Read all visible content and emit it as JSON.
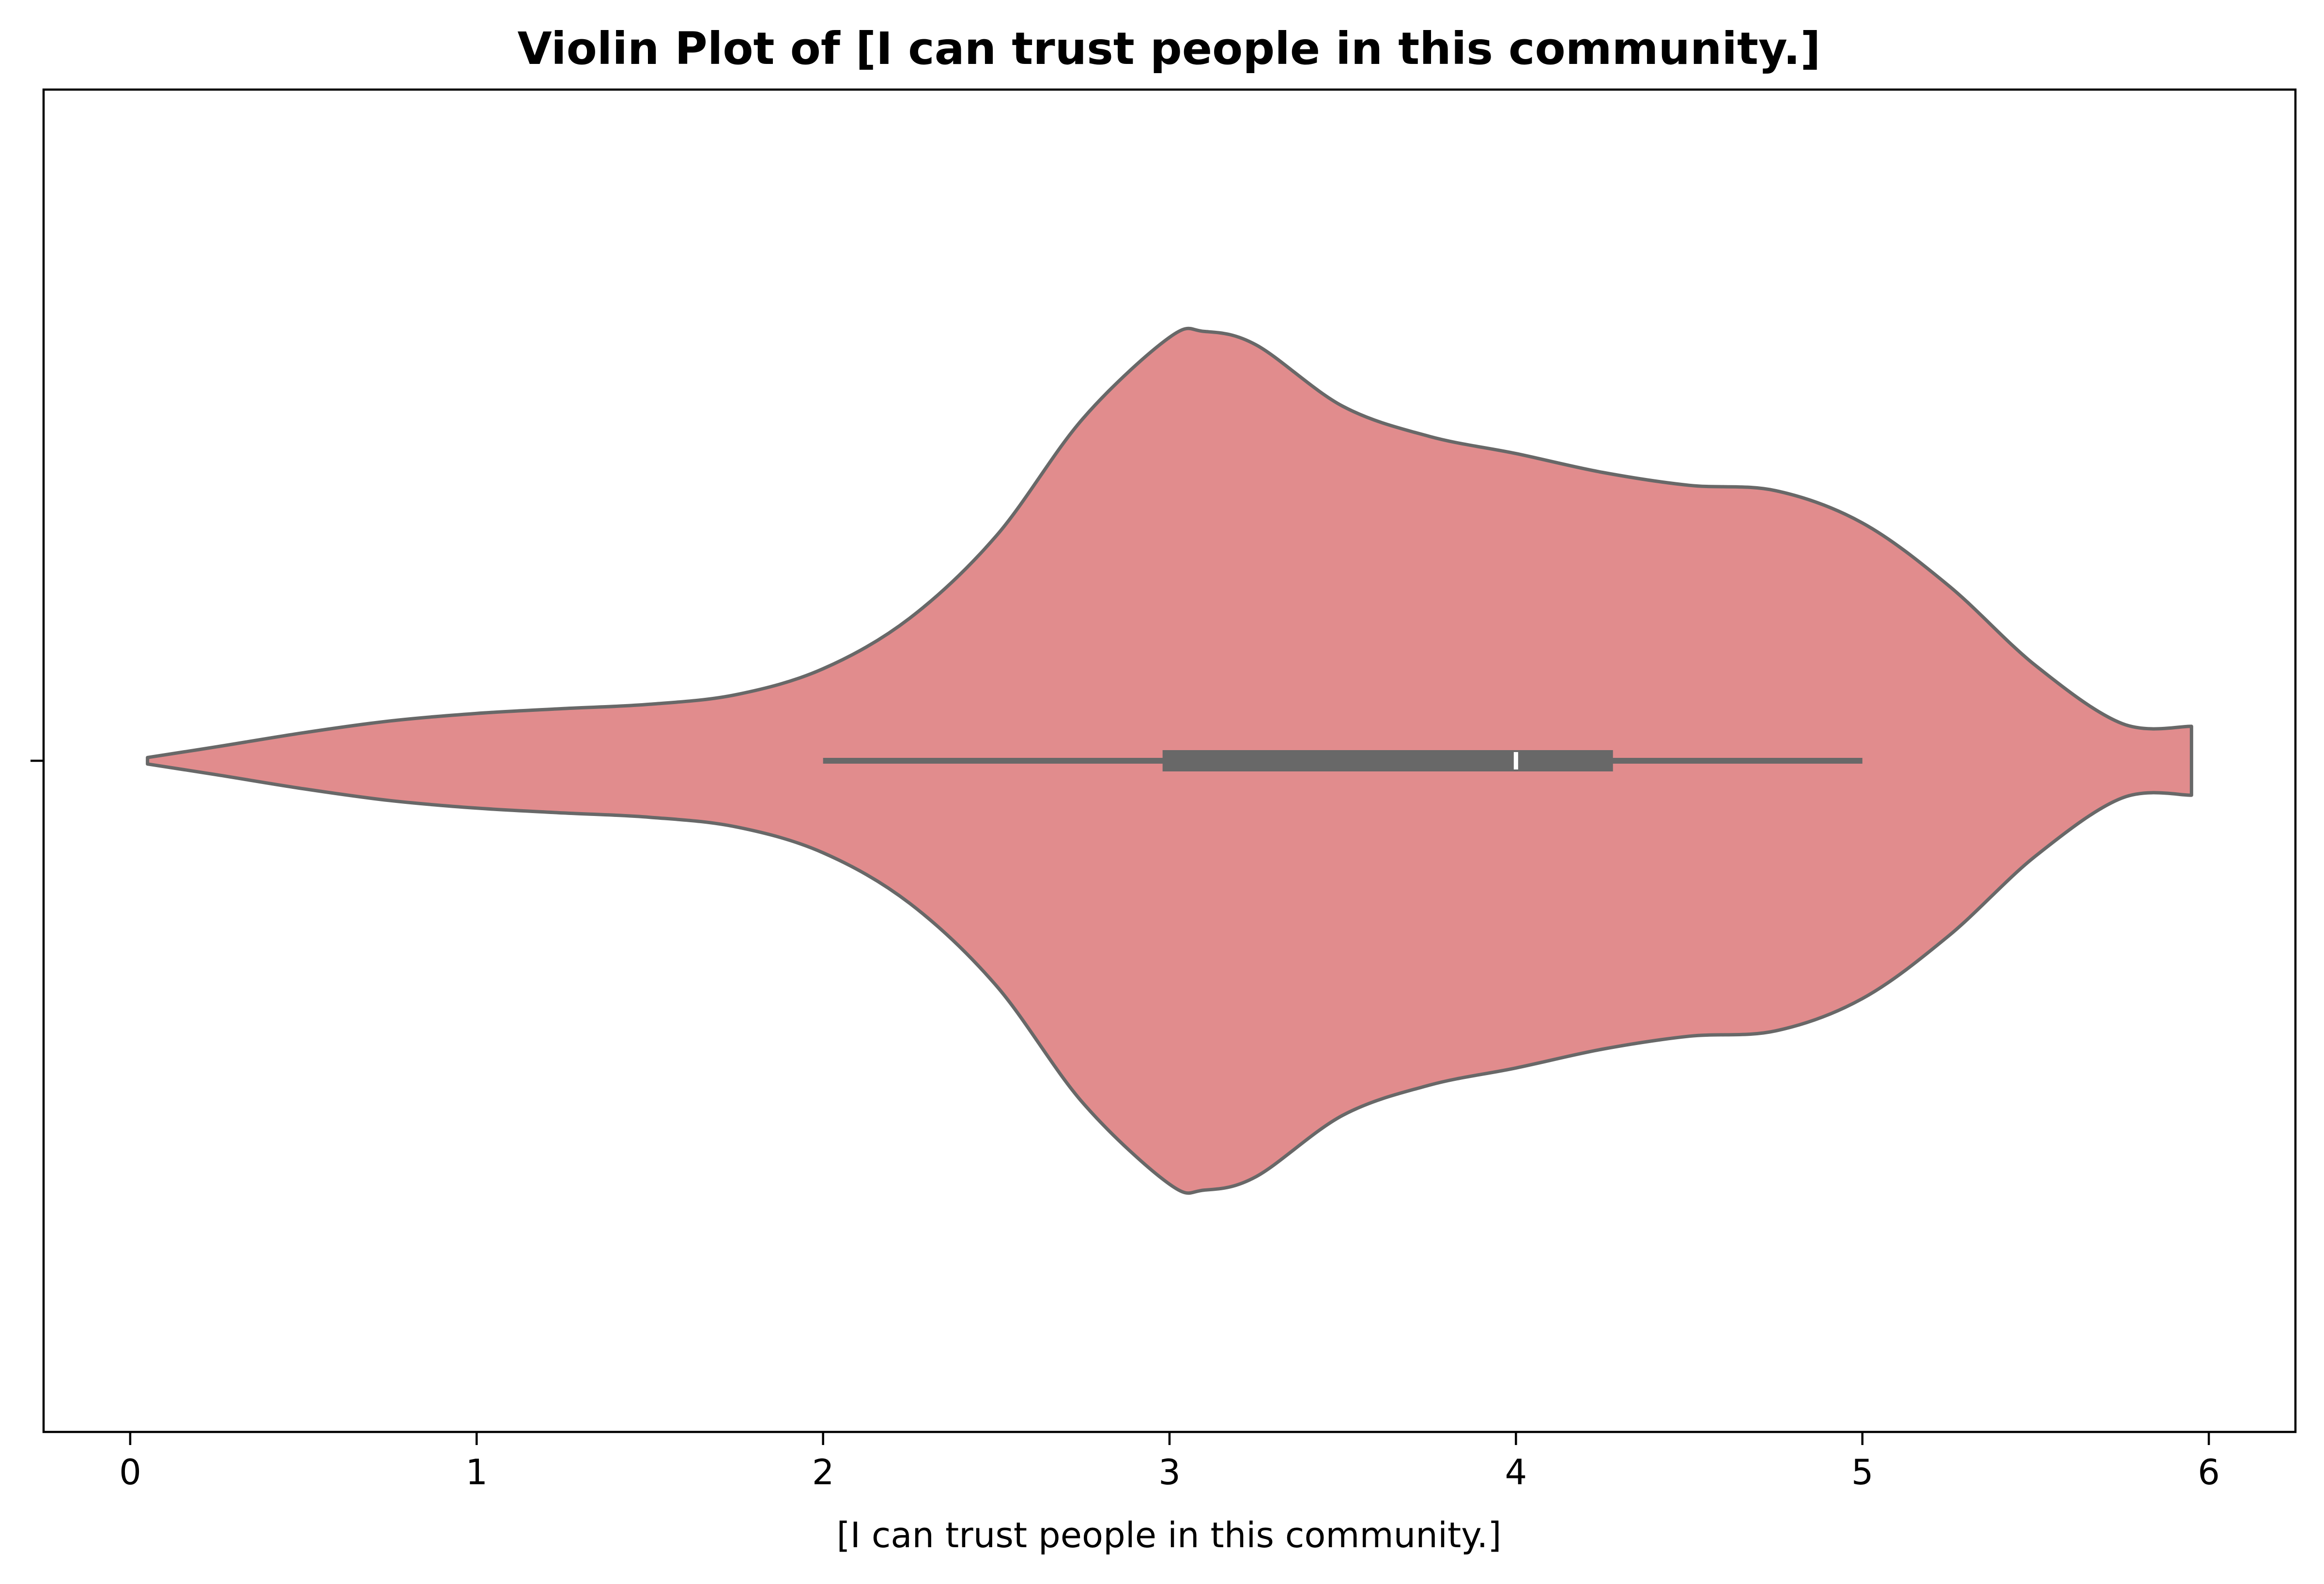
{
  "chart_data": {
    "type": "violin",
    "title": "Violin Plot of [I can trust people in this community.]",
    "xlabel": "[I can trust people in this community.]",
    "ylabel": "",
    "xlim": [
      -0.25,
      6.25
    ],
    "x_ticks": [
      0,
      1,
      2,
      3,
      4,
      5,
      6
    ],
    "x_tick_labels": [
      "0",
      "1",
      "2",
      "3",
      "4",
      "5",
      "6"
    ],
    "grid": false,
    "legend": "none",
    "colors": {
      "fill": "#e18c8d",
      "stroke": "#686868",
      "median": "#ffffff"
    },
    "density": {
      "x": [
        0.05,
        0.25,
        0.5,
        0.75,
        1.0,
        1.25,
        1.5,
        1.75,
        2.0,
        2.25,
        2.5,
        2.75,
        3.0,
        3.1,
        3.25,
        3.5,
        3.75,
        4.0,
        4.25,
        4.5,
        4.75,
        5.0,
        5.25,
        5.5,
        5.75,
        5.95
      ],
      "half_width": [
        0.006,
        0.026,
        0.052,
        0.074,
        0.088,
        0.097,
        0.105,
        0.123,
        0.171,
        0.265,
        0.418,
        0.636,
        0.787,
        0.798,
        0.773,
        0.659,
        0.603,
        0.571,
        0.536,
        0.512,
        0.502,
        0.442,
        0.325,
        0.177,
        0.069,
        0.064
      ]
    },
    "box": {
      "whisker_low": 2.0,
      "q1": 2.98,
      "median": 4.0,
      "q3": 4.28,
      "whisker_high": 5.0
    }
  }
}
